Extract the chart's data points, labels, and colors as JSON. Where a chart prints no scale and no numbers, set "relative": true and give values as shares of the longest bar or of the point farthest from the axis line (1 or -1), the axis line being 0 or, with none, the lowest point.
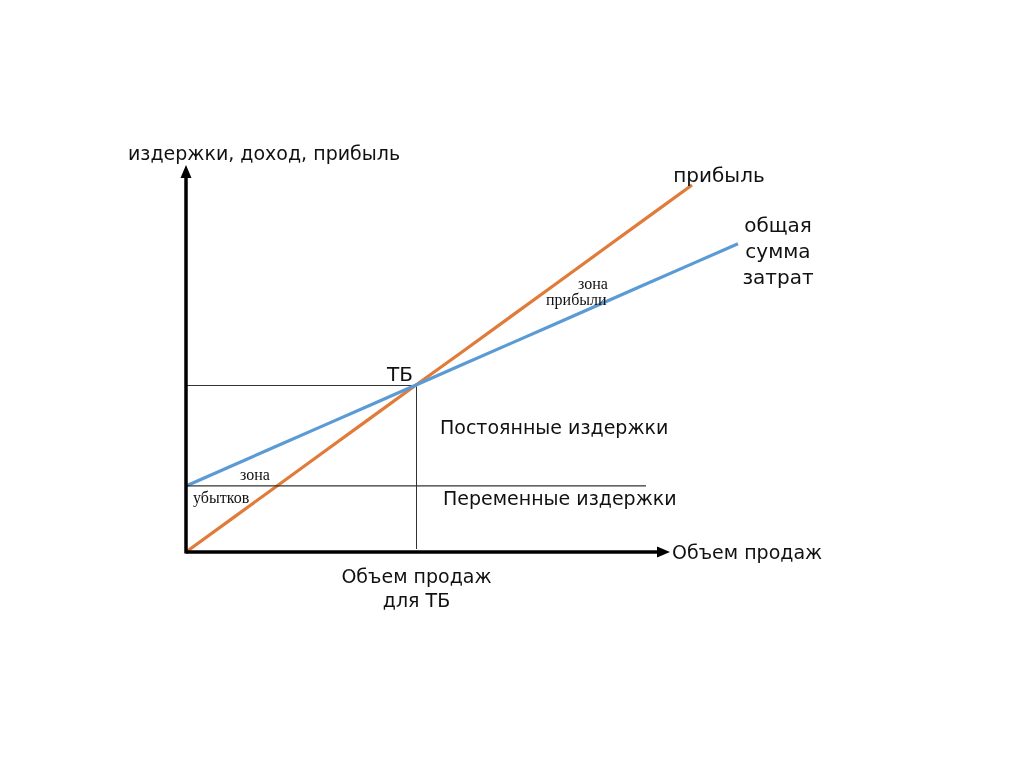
{
  "chart_data": {
    "type": "line",
    "relative": true,
    "ylabel": "издержки, доход, прибыль",
    "xlabel": "Объем продаж",
    "categories": [
      null,
      null,
      null,
      null,
      null,
      null,
      null,
      null,
      null,
      null,
      null,
      null,
      null
    ],
    "series": [
      {
        "name": "прибыль",
        "color": "#e07b39",
        "values": [
          0,
          0.091,
          0.182,
          0.273,
          0.364,
          0.455,
          0.545,
          0.636,
          0.727,
          0.818,
          0.909,
          1,
          null
        ]
      },
      {
        "name": "общая сумма затрат",
        "color": "#5b9bd5",
        "values": [
          0.18,
          0.235,
          0.29,
          0.345,
          0.4,
          0.455,
          0.51,
          0.565,
          0.62,
          0.675,
          0.73,
          0.785,
          0.84
        ]
      },
      {
        "color": "#333333",
        "values": [
          0.18,
          0.18,
          0.18,
          0.18,
          0.18,
          0.18,
          0.18,
          0.18,
          0.18,
          0.18,
          0.18,
          null,
          null
        ]
      }
    ],
    "ref_lines": [
      {
        "axis": "y",
        "value": 0.455,
        "label": "ТБ",
        "color": "#333333"
      }
    ],
    "annotations": [
      "зона прибыли",
      "зона убытков",
      "Постоянные издержки",
      "Переменные издержки",
      "Объем продаж для ТБ"
    ]
  }
}
